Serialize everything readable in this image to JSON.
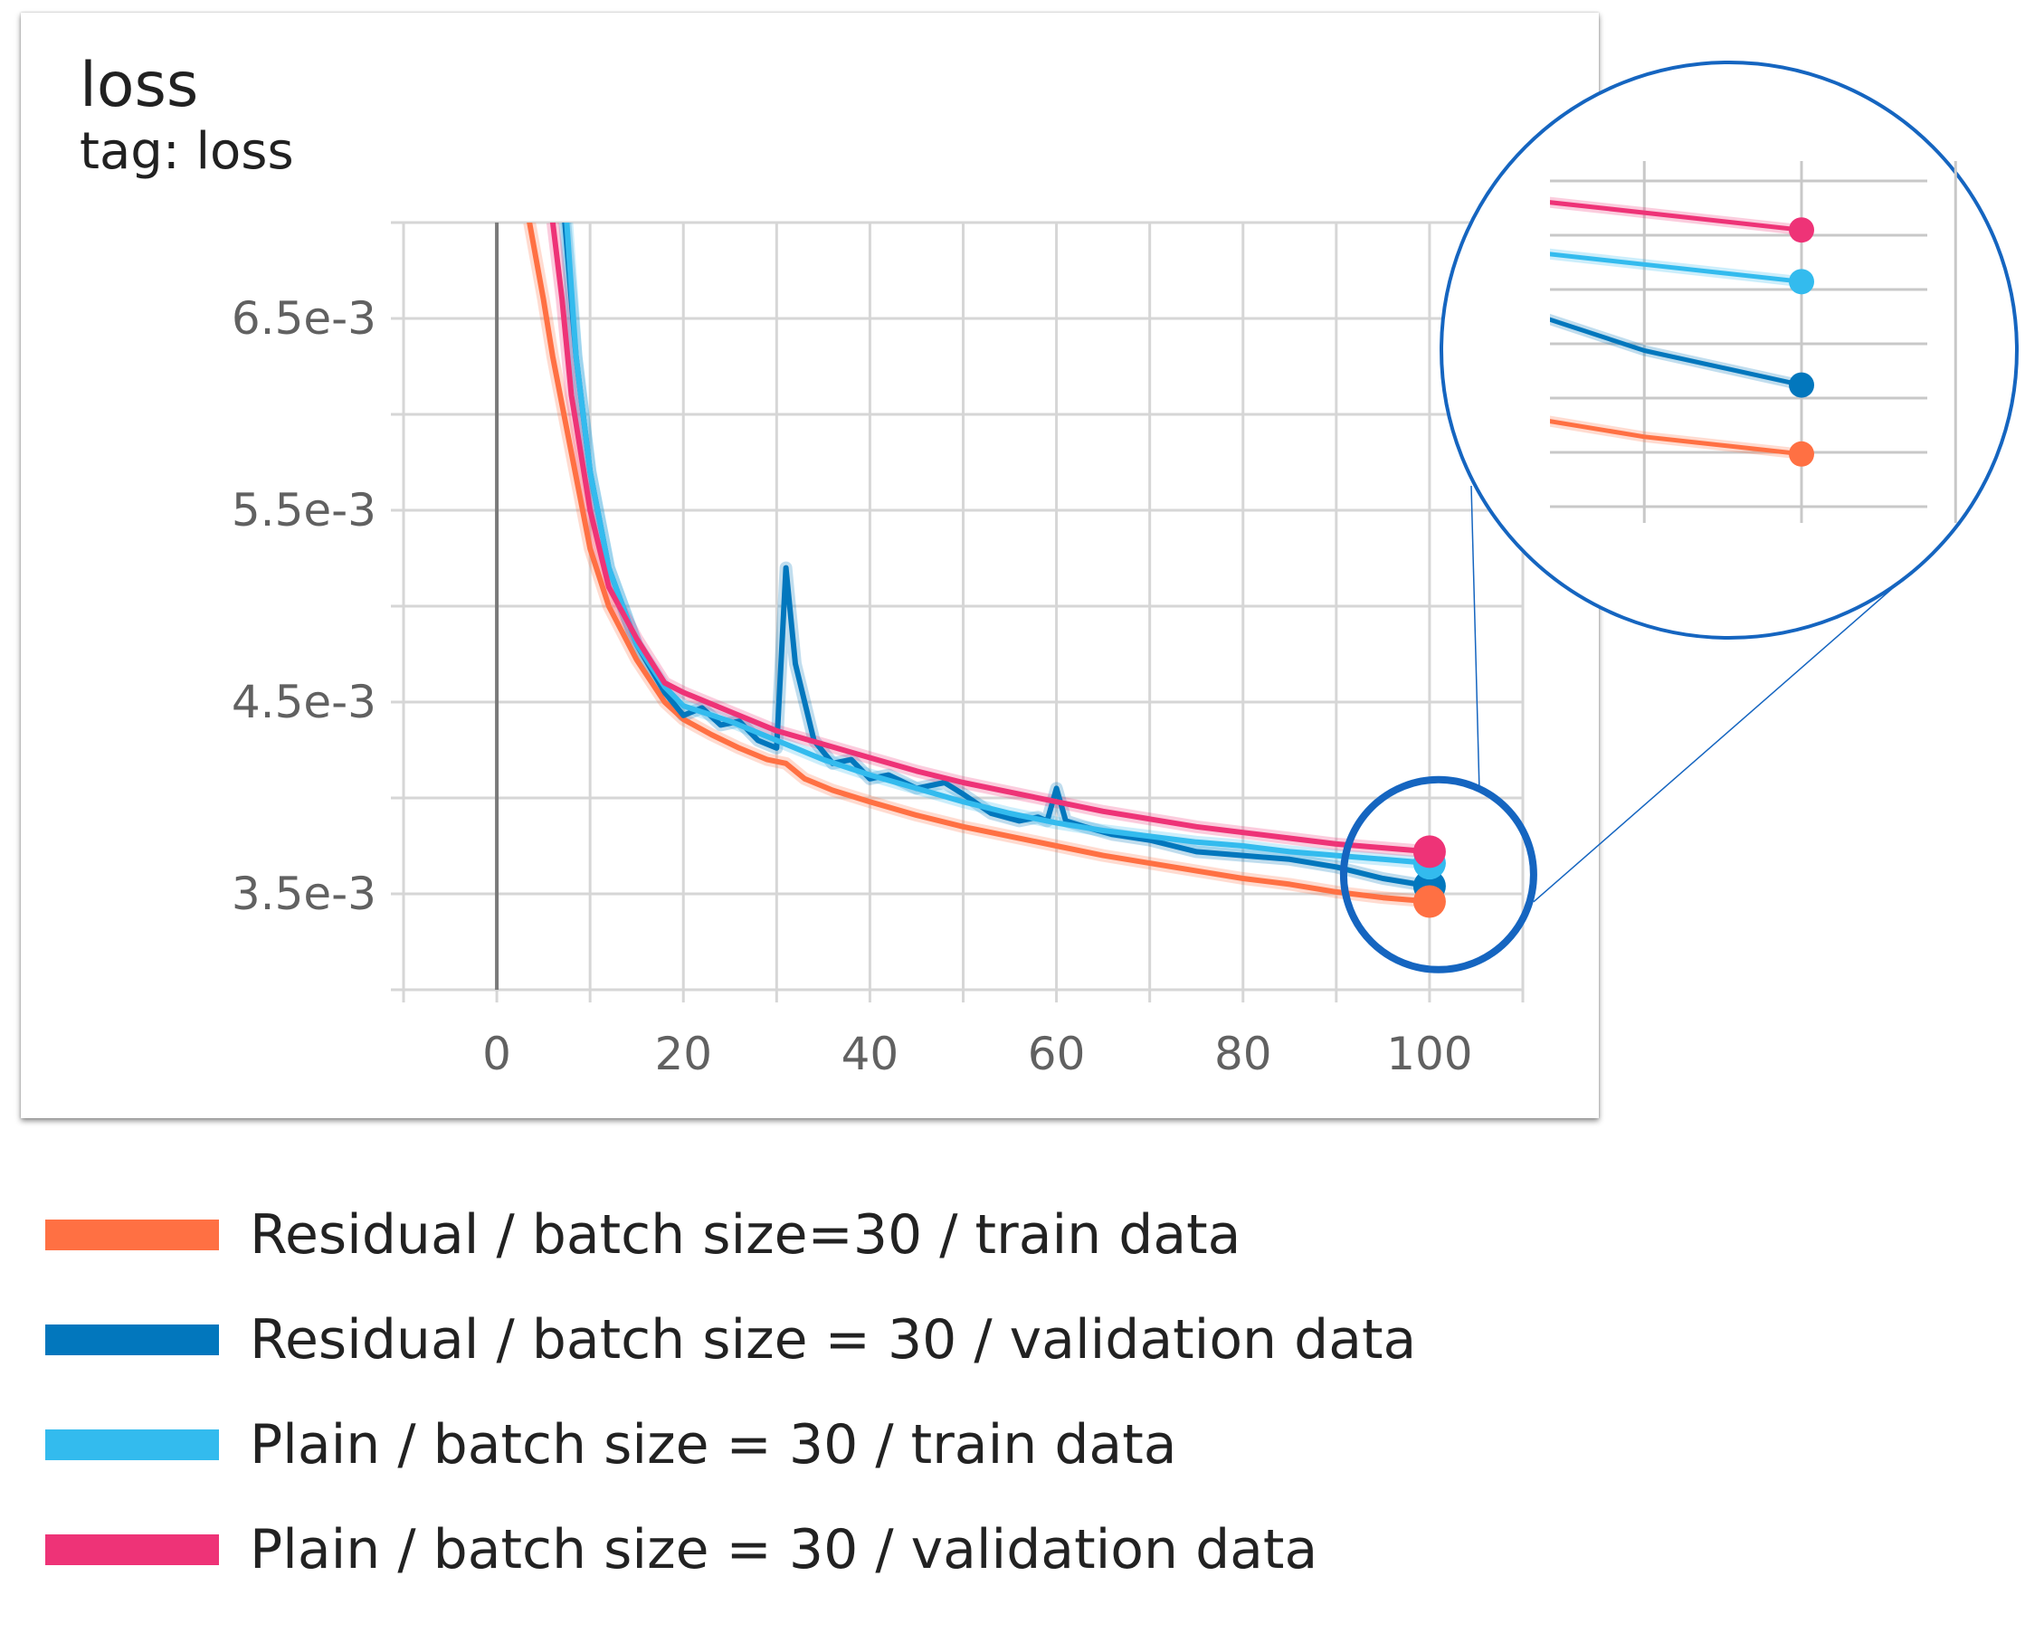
{
  "card": {
    "title": "loss",
    "subtitle": "tag: loss"
  },
  "chart_data": {
    "type": "line",
    "xlim": [
      -10,
      110
    ],
    "ylim": [
      0.003,
      0.007
    ],
    "x_ticks": [
      0,
      20,
      40,
      60,
      80,
      100
    ],
    "x_tick_labels": [
      "0",
      "20",
      "40",
      "60",
      "80",
      "100"
    ],
    "y_ticks": [
      0.0035,
      0.0045,
      0.0055,
      0.0065
    ],
    "y_tick_labels": [
      "3.5e-3",
      "4.5e-3",
      "5.5e-3",
      "6.5e-3"
    ],
    "grid": true,
    "series": [
      {
        "name": "Residual / batch size=30 / train data",
        "color": "#FF7043",
        "x": [
          3.5,
          5,
          6,
          8,
          10,
          12,
          15,
          18,
          20,
          23,
          26,
          29,
          31,
          33,
          36,
          40,
          45,
          50,
          55,
          60,
          65,
          70,
          75,
          80,
          85,
          90,
          95,
          100
        ],
        "y": [
          0.007,
          0.0066,
          0.0063,
          0.0058,
          0.0053,
          0.005,
          0.00472,
          0.0045,
          0.00441,
          0.00433,
          0.00426,
          0.0042,
          0.00418,
          0.0041,
          0.00404,
          0.00398,
          0.00391,
          0.00385,
          0.0038,
          0.00375,
          0.0037,
          0.00366,
          0.00362,
          0.00358,
          0.00355,
          0.00351,
          0.00348,
          0.00346
        ]
      },
      {
        "name": "Residual / batch size = 30 / validation data",
        "color": "#0277BD",
        "x": [
          7.3,
          8.5,
          10,
          12,
          15,
          18,
          20,
          22,
          24,
          26,
          28,
          30,
          31,
          32,
          34,
          36,
          38,
          40,
          42,
          45,
          48,
          50,
          53,
          56,
          58,
          59,
          60,
          61,
          63,
          66,
          70,
          75,
          80,
          85,
          90,
          95,
          100
        ],
        "y": [
          0.007,
          0.0063,
          0.0057,
          0.0052,
          0.0048,
          0.00455,
          0.00443,
          0.00447,
          0.00438,
          0.0044,
          0.0043,
          0.00426,
          0.0052,
          0.0047,
          0.0043,
          0.00418,
          0.0042,
          0.0041,
          0.00412,
          0.00405,
          0.00408,
          0.00402,
          0.00392,
          0.00388,
          0.0039,
          0.00388,
          0.00405,
          0.00388,
          0.00385,
          0.00381,
          0.00378,
          0.00372,
          0.0037,
          0.00368,
          0.00364,
          0.00358,
          0.00354
        ]
      },
      {
        "name": "Plain / batch size = 30 / train data",
        "color": "#33BBEE",
        "x": [
          7.5,
          8.5,
          10,
          12,
          15,
          18,
          20,
          25,
          30,
          35,
          40,
          45,
          50,
          55,
          60,
          65,
          70,
          75,
          80,
          85,
          90,
          95,
          100
        ],
        "y": [
          0.007,
          0.0063,
          0.0057,
          0.0052,
          0.0048,
          0.00458,
          0.00448,
          0.0044,
          0.0043,
          0.0042,
          0.00412,
          0.00405,
          0.00398,
          0.00392,
          0.00387,
          0.00383,
          0.0038,
          0.00377,
          0.00375,
          0.00372,
          0.0037,
          0.00368,
          0.00366
        ]
      },
      {
        "name": "Plain / batch size = 30 / validation data",
        "color": "#EE3377",
        "x": [
          6,
          7,
          8,
          10,
          12,
          15,
          18,
          20,
          25,
          30,
          35,
          40,
          45,
          50,
          55,
          60,
          65,
          70,
          75,
          80,
          85,
          90,
          95,
          100
        ],
        "y": [
          0.007,
          0.0066,
          0.0061,
          0.0055,
          0.0051,
          0.00483,
          0.0046,
          0.00455,
          0.00445,
          0.00435,
          0.00428,
          0.00421,
          0.00414,
          0.00408,
          0.00403,
          0.00398,
          0.00393,
          0.00389,
          0.00385,
          0.00382,
          0.00379,
          0.00376,
          0.00374,
          0.00372
        ]
      }
    ]
  }
}
